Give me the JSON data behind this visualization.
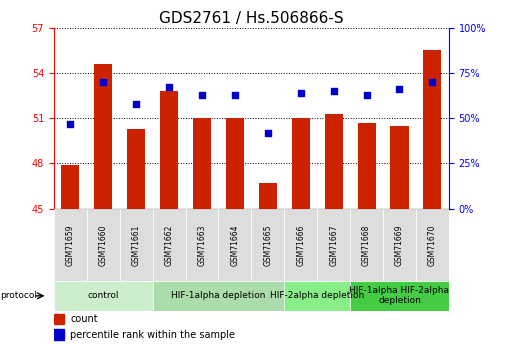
{
  "title": "GDS2761 / Hs.506866-S",
  "samples": [
    "GSM71659",
    "GSM71660",
    "GSM71661",
    "GSM71662",
    "GSM71663",
    "GSM71664",
    "GSM71665",
    "GSM71666",
    "GSM71667",
    "GSM71668",
    "GSM71669",
    "GSM71670"
  ],
  "bar_values": [
    47.9,
    54.6,
    50.3,
    52.8,
    51.0,
    51.0,
    46.7,
    51.0,
    51.3,
    50.7,
    50.5,
    55.5
  ],
  "dot_percentiles": [
    47,
    70,
    58,
    67,
    63,
    63,
    42,
    64,
    65,
    63,
    66,
    70
  ],
  "ylim_left": [
    45,
    57
  ],
  "ylim_right": [
    0,
    100
  ],
  "yticks_left": [
    45,
    48,
    51,
    54,
    57
  ],
  "yticks_right": [
    0,
    25,
    50,
    75,
    100
  ],
  "ytick_labels_right": [
    "0%",
    "25%",
    "50%",
    "75%",
    "100%"
  ],
  "bar_color": "#CC2200",
  "dot_color": "#0000CC",
  "protocols": [
    {
      "label": "control",
      "start": 0,
      "end": 2,
      "color": "#CCEECC"
    },
    {
      "label": "HIF-1alpha depletion",
      "start": 3,
      "end": 6,
      "color": "#AADDAA"
    },
    {
      "label": "HIF-2alpha depletion",
      "start": 7,
      "end": 8,
      "color": "#88EE88"
    },
    {
      "label": "HIF-1alpha HIF-2alpha\ndepletion",
      "start": 9,
      "end": 11,
      "color": "#44CC44"
    }
  ],
  "protocol_label": "protocol",
  "legend_count_label": "count",
  "legend_percentile_label": "percentile rank within the sample",
  "title_fontsize": 11,
  "tick_fontsize": 7,
  "sample_fontsize": 5.5,
  "proto_fontsize": 6.5,
  "legend_fontsize": 7
}
